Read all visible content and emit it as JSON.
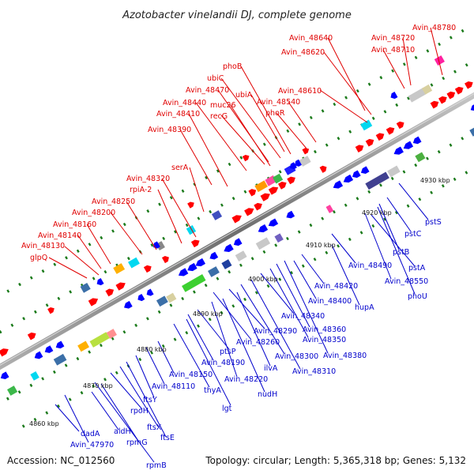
{
  "title": "Azotobacter vinelandii DJ, complete genome",
  "footer": {
    "accession": "Accession: NC_012560",
    "summary": "Topology: circular; Length: 5,365,318 bp; Genes: 5,132"
  },
  "ticks": [
    "4860 kbp",
    "4870 kbp",
    "4880 kbp",
    "4890 kbp",
    "4900 kbp",
    "4910 kbp",
    "4920 kbp",
    "4930 kbp"
  ],
  "top_labels": [
    "glpQ",
    "Avin_48130",
    "Avin_48140",
    "Avin_48160",
    "Avin_48200",
    "Avin_48250",
    "rpiA-2",
    "Avin_48320",
    "serA",
    "Avin_48390",
    "Avin_48410",
    "Avin_48440",
    "recG",
    "Avin_48470",
    "muc26",
    "ubiC",
    "ubiA",
    "phoB",
    "phoR",
    "Avin_48540",
    "Avin_48610",
    "Avin_48620",
    "Avin_48640",
    "Avin_48710",
    "Avin_48720",
    "Avin_48780"
  ],
  "bottom_labels": [
    "dadA",
    "Avin_47970",
    "aldH",
    "rpmG",
    "rpmB",
    "rpoH",
    "ftsX",
    "ftsE",
    "ftsY",
    "Avin_48110",
    "Avin_48150",
    "thyA",
    "lgt",
    "Avin_48190",
    "ptsP",
    "Avin_48220",
    "nudH",
    "Avin_48260",
    "ilvA",
    "Avin_48290",
    "Avin_48300",
    "Avin_48310",
    "Avin_48340",
    "Avin_48350",
    "Avin_48360",
    "Avin_48380",
    "Avin_48400",
    "Avin_48420",
    "hupA",
    "Avin_48490",
    "pstA",
    "Avin_48550",
    "phoU",
    "pstB",
    "pstC",
    "pstS"
  ],
  "colors": {
    "forward": "#ff0000",
    "reverse": "#0000ff",
    "backbone": "#8a8a8a",
    "tick_dots": "#1a7a1a",
    "label_forward": "#e00000",
    "label_reverse": "#0000cc"
  }
}
